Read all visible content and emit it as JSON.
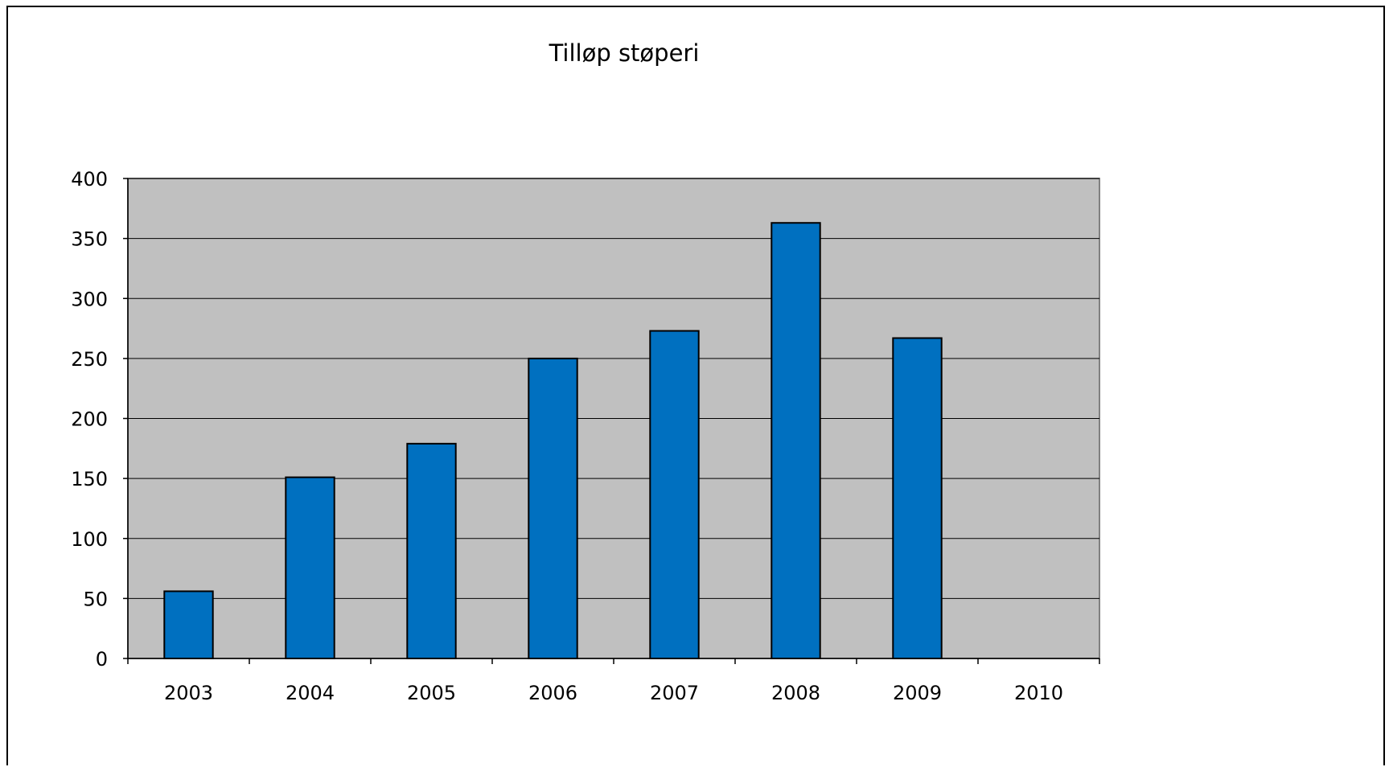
{
  "chart_data": {
    "type": "bar",
    "title": "Tilløp støperi",
    "xlabel": "",
    "ylabel": "",
    "categories": [
      "2003",
      "2004",
      "2005",
      "2006",
      "2007",
      "2008",
      "2009",
      "2010"
    ],
    "values": [
      56,
      151,
      179,
      250,
      273,
      363,
      267,
      null
    ],
    "ylim": [
      0,
      400
    ],
    "yticks": [
      0,
      50,
      100,
      150,
      200,
      250,
      300,
      350,
      400
    ],
    "grid": true,
    "legend": "none",
    "colors": {
      "bar": "#0070C0",
      "plot_background": "#C0C0C0",
      "gridline": "#000000"
    }
  }
}
